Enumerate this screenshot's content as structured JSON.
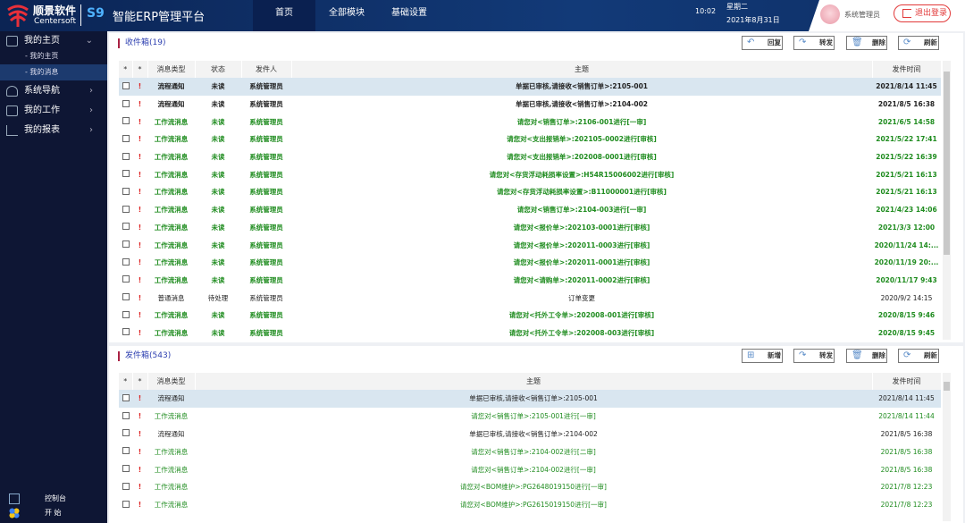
{
  "header": {
    "brand_cn": "顺景软件",
    "brand_en": "Centersoft",
    "product_mark": "S9",
    "title": "智能ERP管理平台",
    "nav": [
      "首页",
      "全部模块",
      "基础设置"
    ],
    "active_nav": "首页",
    "time": "10:02",
    "weekday": "星期二",
    "date": "2021年8月31日",
    "user": "系统管理员",
    "logout": "退出登录"
  },
  "sidebar": {
    "items": [
      {
        "label": "我的主页",
        "icon": "home-icon",
        "expanded": true
      },
      {
        "label": "系统导航",
        "icon": "map-pin-icon"
      },
      {
        "label": "我的工作",
        "icon": "briefcase-icon"
      },
      {
        "label": "我的报表",
        "icon": "chart-icon"
      }
    ],
    "subitems": [
      "- 我的主页",
      "- 我的消息"
    ],
    "active_sub": "- 我的消息",
    "bottom": [
      "控制台",
      "开  始"
    ]
  },
  "inbox": {
    "title": "收件箱(19)",
    "buttons": [
      "回复",
      "转发",
      "删除",
      "刷新"
    ],
    "columns": [
      "*",
      "*",
      "消息类型",
      "状态",
      "发件人",
      "主题",
      "发件时间"
    ],
    "rows": [
      {
        "type": "流程通知",
        "status": "未读",
        "sender": "系统管理员",
        "subject": "单据已审核,请接收<销售订单>:2105-001",
        "time": "2021/8/14 11:45",
        "color": "black",
        "selected": true
      },
      {
        "type": "流程通知",
        "status": "未读",
        "sender": "系统管理员",
        "subject": "单据已审核,请接收<销售订单>:2104-002",
        "time": "2021/8/5 16:38",
        "color": "black"
      },
      {
        "type": "工作流消息",
        "status": "未读",
        "sender": "系统管理员",
        "subject": "请您对<销售订单>:2106-001进行[一审]",
        "time": "2021/6/5 14:58",
        "color": "green"
      },
      {
        "type": "工作流消息",
        "status": "未读",
        "sender": "系统管理员",
        "subject": "请您对<支出报销单>:202105-0002进行[审核]",
        "time": "2021/5/22 17:41",
        "color": "green"
      },
      {
        "type": "工作流消息",
        "status": "未读",
        "sender": "系统管理员",
        "subject": "请您对<支出报销单>:202008-0001进行[审核]",
        "time": "2021/5/22 16:39",
        "color": "green"
      },
      {
        "type": "工作流消息",
        "status": "未读",
        "sender": "系统管理员",
        "subject": "请您对<存货浮动耗损率设置>:H54R15006002进行[审核]",
        "time": "2021/5/21 16:13",
        "color": "green"
      },
      {
        "type": "工作流消息",
        "status": "未读",
        "sender": "系统管理员",
        "subject": "请您对<存货浮动耗损率设置>:B11000001进行[审核]",
        "time": "2021/5/21 16:13",
        "color": "green"
      },
      {
        "type": "工作流消息",
        "status": "未读",
        "sender": "系统管理员",
        "subject": "请您对<销售订单>:2104-003进行[一审]",
        "time": "2021/4/23 14:06",
        "color": "green"
      },
      {
        "type": "工作流消息",
        "status": "未读",
        "sender": "系统管理员",
        "subject": "请您对<报价单>:202103-0001进行[审核]",
        "time": "2021/3/3 12:00",
        "color": "green"
      },
      {
        "type": "工作流消息",
        "status": "未读",
        "sender": "系统管理员",
        "subject": "请您对<报价单>:202011-0003进行[审核]",
        "time": "2020/11/24 14:...",
        "color": "green"
      },
      {
        "type": "工作流消息",
        "status": "未读",
        "sender": "系统管理员",
        "subject": "请您对<报价单>:202011-0001进行[审核]",
        "time": "2020/11/19 20:...",
        "color": "green"
      },
      {
        "type": "工作流消息",
        "status": "未读",
        "sender": "系统管理员",
        "subject": "请您对<请购单>:202011-0002进行[审核]",
        "time": "2020/11/17 9:43",
        "color": "green"
      },
      {
        "type": "普通消息",
        "status": "待处理",
        "sender": "系统管理员",
        "subject": "订单变更",
        "time": "2020/9/2 14:15",
        "color": "black",
        "plain": true
      },
      {
        "type": "工作流消息",
        "status": "未读",
        "sender": "系统管理员",
        "subject": "请您对<托外工令单>:202008-001进行[审核]",
        "time": "2020/8/15 9:46",
        "color": "green"
      },
      {
        "type": "工作流消息",
        "status": "未读",
        "sender": "系统管理员",
        "subject": "请您对<托外工令单>:202008-003进行[审核]",
        "time": "2020/8/15 9:45",
        "color": "green"
      }
    ]
  },
  "outbox": {
    "title": "发件箱(543)",
    "buttons": [
      "新增",
      "转发",
      "删除",
      "刷新"
    ],
    "columns": [
      "*",
      "*",
      "消息类型",
      "主题",
      "发件时间"
    ],
    "rows": [
      {
        "type": "流程通知",
        "subject": "单据已审核,请接收<销售订单>:2105-001",
        "time": "2021/8/14 11:45",
        "color": "black",
        "selected": true
      },
      {
        "type": "工作流消息",
        "subject": "请您对<销售订单>:2105-001进行[一审]",
        "time": "2021/8/14 11:44",
        "color": "green"
      },
      {
        "type": "流程通知",
        "subject": "单据已审核,请接收<销售订单>:2104-002",
        "time": "2021/8/5 16:38",
        "color": "black"
      },
      {
        "type": "工作流消息",
        "subject": "请您对<销售订单>:2104-002进行[二审]",
        "time": "2021/8/5 16:38",
        "color": "green"
      },
      {
        "type": "工作流消息",
        "subject": "请您对<销售订单>:2104-002进行[一审]",
        "time": "2021/8/5 16:38",
        "color": "green"
      },
      {
        "type": "工作流消息",
        "subject": "请您对<BOM维护>:PG2648019150进行[一审]",
        "time": "2021/7/8 12:23",
        "color": "green"
      },
      {
        "type": "工作流消息",
        "subject": "请您对<BOM维护>:PG2615019150进行[一审]",
        "time": "2021/7/8 12:23",
        "color": "green"
      }
    ]
  },
  "colors": {
    "header": "#123a78",
    "sidebar": "#0e1634",
    "green_text": "#1f8c1f",
    "selected_row": "#d9e6f0",
    "logout": "#e23a3a"
  }
}
